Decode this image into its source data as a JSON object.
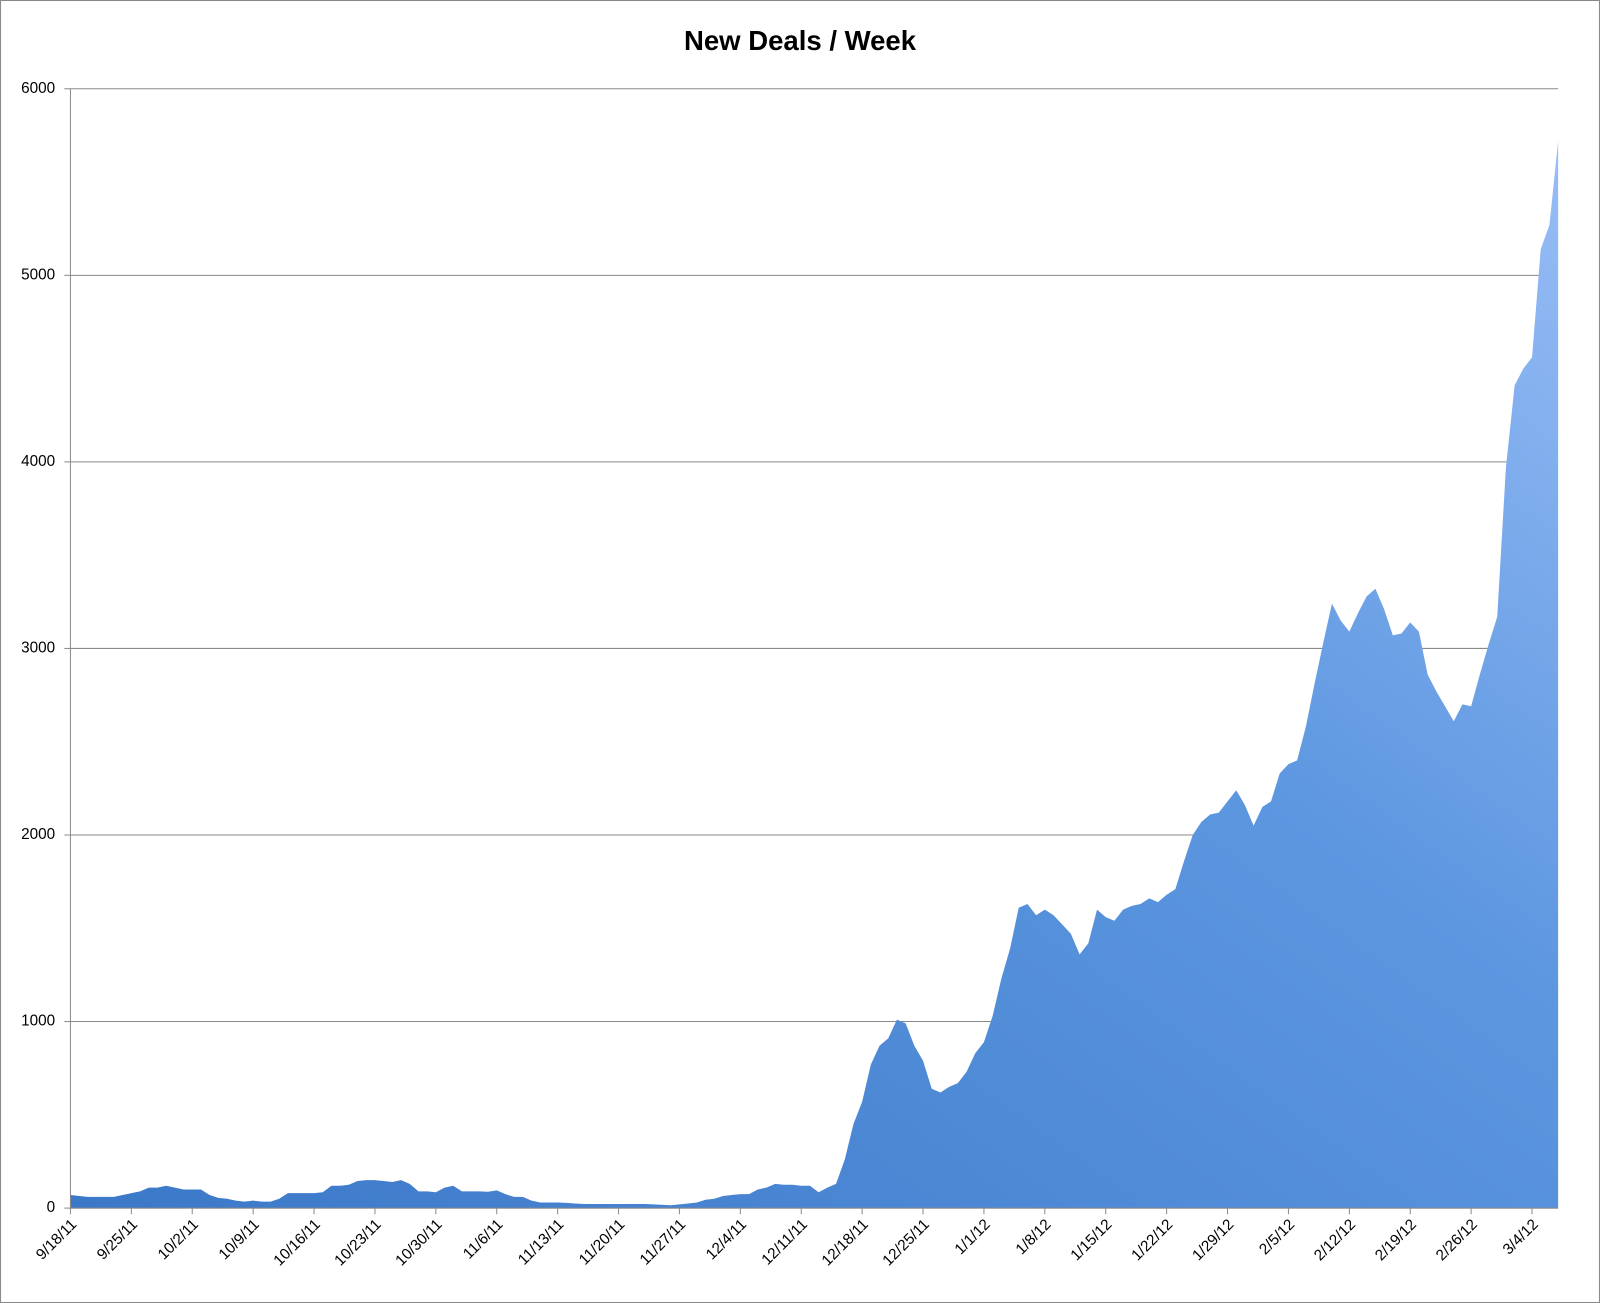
{
  "chart_data": {
    "type": "area",
    "title": "New Deals / Week",
    "categories": [
      "9/18/11",
      null,
      null,
      null,
      null,
      null,
      null,
      "9/25/11",
      null,
      null,
      null,
      null,
      null,
      null,
      "10/2/11",
      null,
      null,
      null,
      null,
      null,
      null,
      "10/9/11",
      null,
      null,
      null,
      null,
      null,
      null,
      "10/16/11",
      null,
      null,
      null,
      null,
      null,
      null,
      "10/23/11",
      null,
      null,
      null,
      null,
      null,
      null,
      "10/30/11",
      null,
      null,
      null,
      null,
      null,
      null,
      "11/6/11",
      null,
      null,
      null,
      null,
      null,
      null,
      "11/13/11",
      null,
      null,
      null,
      null,
      null,
      null,
      "11/20/11",
      null,
      null,
      null,
      null,
      null,
      null,
      "11/27/11",
      null,
      null,
      null,
      null,
      null,
      null,
      "12/4/11",
      null,
      null,
      null,
      null,
      null,
      null,
      "12/11/11",
      null,
      null,
      null,
      null,
      null,
      null,
      "12/18/11",
      null,
      null,
      null,
      null,
      null,
      null,
      "12/25/11",
      null,
      null,
      null,
      null,
      null,
      null,
      "1/1/12",
      null,
      null,
      null,
      null,
      null,
      null,
      "1/8/12",
      null,
      null,
      null,
      null,
      null,
      null,
      "1/15/12",
      null,
      null,
      null,
      null,
      null,
      null,
      "1/22/12",
      null,
      null,
      null,
      null,
      null,
      null,
      "1/29/12",
      null,
      null,
      null,
      null,
      null,
      null,
      "2/5/12",
      null,
      null,
      null,
      null,
      null,
      null,
      "2/12/12",
      null,
      null,
      null,
      null,
      null,
      null,
      "2/19/12",
      null,
      null,
      null,
      null,
      null,
      null,
      "2/26/12",
      null,
      null,
      null,
      null,
      null,
      null,
      "3/4/12",
      null,
      null,
      null
    ],
    "values": [
      70,
      65,
      60,
      60,
      60,
      60,
      70,
      80,
      90,
      110,
      110,
      120,
      110,
      100,
      100,
      100,
      70,
      55,
      50,
      40,
      35,
      40,
      35,
      35,
      50,
      80,
      80,
      80,
      80,
      85,
      120,
      120,
      125,
      145,
      150,
      150,
      145,
      140,
      150,
      130,
      90,
      90,
      85,
      110,
      120,
      90,
      90,
      90,
      88,
      95,
      75,
      60,
      60,
      40,
      30,
      30,
      30,
      28,
      25,
      22,
      22,
      22,
      22,
      22,
      22,
      22,
      22,
      20,
      18,
      15,
      20,
      25,
      30,
      45,
      50,
      65,
      70,
      75,
      75,
      100,
      110,
      130,
      125,
      125,
      120,
      120,
      85,
      110,
      130,
      260,
      450,
      570,
      770,
      870,
      910,
      1010,
      990,
      870,
      790,
      640,
      620,
      650,
      670,
      730,
      830,
      890,
      1030,
      1230,
      1390,
      1610,
      1630,
      1570,
      1600,
      1570,
      1520,
      1470,
      1360,
      1420,
      1600,
      1560,
      1540,
      1600,
      1620,
      1630,
      1660,
      1640,
      1680,
      1710,
      1860,
      2000,
      2070,
      2110,
      2120,
      2180,
      2240,
      2160,
      2050,
      2150,
      2180,
      2330,
      2380,
      2400,
      2580,
      2810,
      3030,
      3240,
      3150,
      3090,
      3190,
      3280,
      3320,
      3210,
      3070,
      3080,
      3140,
      3090,
      2860,
      2770,
      2690,
      2610,
      2700,
      2690,
      2860,
      3020,
      3170,
      3970,
      4410,
      4500,
      4560,
      5140,
      5270,
      5720
    ],
    "color": "#4a86d6",
    "ylim": [
      0,
      6000
    ],
    "yticks": [
      0,
      1000,
      2000,
      3000,
      4000,
      5000,
      6000
    ],
    "grid": true
  }
}
